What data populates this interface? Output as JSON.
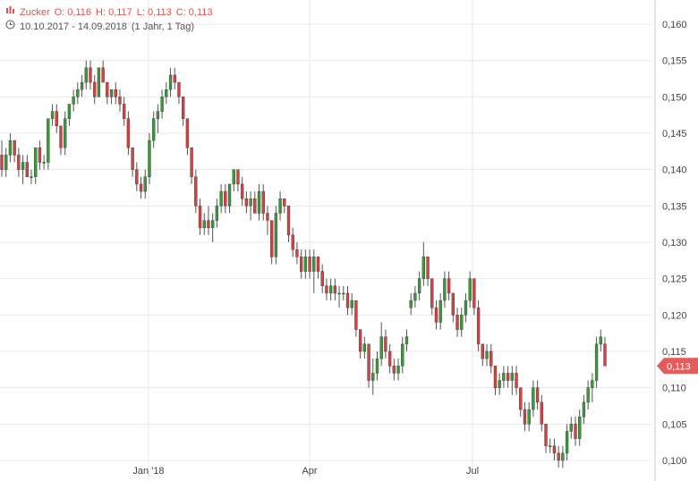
{
  "legend": {
    "name": "Zucker",
    "open": "O: 0,116",
    "high": "H: 0,117",
    "low": "L: 0,113",
    "close": "C: 0,113",
    "date_range": "10.10.2017 - 14.09.2018",
    "period": "(1 Jahr, 1 Tag)",
    "icon_name": "chart-bars-icon",
    "clock_icon": "clock-icon"
  },
  "colors": {
    "up": "#3a9a3a",
    "down": "#d94040",
    "grid": "#e8e8e8",
    "current_tag": "#e85a5a"
  },
  "current_price_label": "0,113",
  "chart_data": {
    "type": "candlestick",
    "ylim": [
      0.098,
      0.163
    ],
    "yticks": [
      "0,100",
      "0,105",
      "0,110",
      "0,115",
      "0,120",
      "0,125",
      "0,130",
      "0,135",
      "0,140",
      "0,145",
      "0,150",
      "0,155",
      "0,160"
    ],
    "xticks": [
      {
        "label": "Jan '18",
        "date": "2018-01-01"
      },
      {
        "label": "Apr",
        "date": "2018-04-01"
      },
      {
        "label": "Jul",
        "date": "2018-07-01"
      }
    ],
    "current_price": 0.113,
    "ohlc": [
      [
        0.142,
        0.144,
        0.139,
        0.14
      ],
      [
        0.14,
        0.143,
        0.139,
        0.142
      ],
      [
        0.142,
        0.145,
        0.141,
        0.144
      ],
      [
        0.144,
        0.144,
        0.141,
        0.142
      ],
      [
        0.142,
        0.143,
        0.139,
        0.14
      ],
      [
        0.14,
        0.142,
        0.138,
        0.141
      ],
      [
        0.141,
        0.142,
        0.139,
        0.139
      ],
      [
        0.139,
        0.14,
        0.138,
        0.139
      ],
      [
        0.139,
        0.143,
        0.138,
        0.143
      ],
      [
        0.143,
        0.144,
        0.14,
        0.141
      ],
      [
        0.141,
        0.142,
        0.14,
        0.141
      ],
      [
        0.141,
        0.147,
        0.14,
        0.147
      ],
      [
        0.147,
        0.149,
        0.146,
        0.148
      ],
      [
        0.148,
        0.149,
        0.145,
        0.146
      ],
      [
        0.146,
        0.146,
        0.142,
        0.143
      ],
      [
        0.143,
        0.148,
        0.142,
        0.147
      ],
      [
        0.147,
        0.149,
        0.146,
        0.149
      ],
      [
        0.149,
        0.151,
        0.148,
        0.15
      ],
      [
        0.15,
        0.152,
        0.149,
        0.151
      ],
      [
        0.151,
        0.153,
        0.15,
        0.152
      ],
      [
        0.152,
        0.155,
        0.151,
        0.154
      ],
      [
        0.154,
        0.155,
        0.151,
        0.152
      ],
      [
        0.152,
        0.153,
        0.149,
        0.15
      ],
      [
        0.15,
        0.154,
        0.15,
        0.154
      ],
      [
        0.154,
        0.155,
        0.152,
        0.152
      ],
      [
        0.152,
        0.152,
        0.149,
        0.15
      ],
      [
        0.15,
        0.151,
        0.149,
        0.151
      ],
      [
        0.151,
        0.152,
        0.149,
        0.15
      ],
      [
        0.15,
        0.151,
        0.148,
        0.149
      ],
      [
        0.149,
        0.15,
        0.146,
        0.147
      ],
      [
        0.147,
        0.148,
        0.142,
        0.143
      ],
      [
        0.143,
        0.143,
        0.139,
        0.14
      ],
      [
        0.14,
        0.141,
        0.137,
        0.138
      ],
      [
        0.138,
        0.139,
        0.136,
        0.137
      ],
      [
        0.137,
        0.14,
        0.136,
        0.139
      ],
      [
        0.139,
        0.145,
        0.138,
        0.144
      ],
      [
        0.144,
        0.148,
        0.143,
        0.147
      ],
      [
        0.147,
        0.149,
        0.145,
        0.148
      ],
      [
        0.148,
        0.151,
        0.147,
        0.15
      ],
      [
        0.15,
        0.152,
        0.149,
        0.151
      ],
      [
        0.151,
        0.154,
        0.15,
        0.153
      ],
      [
        0.153,
        0.154,
        0.151,
        0.152
      ],
      [
        0.152,
        0.152,
        0.149,
        0.15
      ],
      [
        0.15,
        0.15,
        0.146,
        0.147
      ],
      [
        0.147,
        0.147,
        0.142,
        0.143
      ],
      [
        0.143,
        0.143,
        0.138,
        0.139
      ],
      [
        0.139,
        0.14,
        0.134,
        0.135
      ],
      [
        0.135,
        0.136,
        0.131,
        0.132
      ],
      [
        0.132,
        0.134,
        0.131,
        0.133
      ],
      [
        0.133,
        0.135,
        0.131,
        0.132
      ],
      [
        0.132,
        0.134,
        0.13,
        0.133
      ],
      [
        0.133,
        0.136,
        0.132,
        0.135
      ],
      [
        0.135,
        0.138,
        0.134,
        0.137
      ],
      [
        0.137,
        0.138,
        0.134,
        0.135
      ],
      [
        0.135,
        0.138,
        0.134,
        0.138
      ],
      [
        0.138,
        0.14,
        0.137,
        0.14
      ],
      [
        0.14,
        0.14,
        0.137,
        0.138
      ],
      [
        0.138,
        0.139,
        0.135,
        0.136
      ],
      [
        0.136,
        0.137,
        0.134,
        0.135
      ],
      [
        0.135,
        0.137,
        0.133,
        0.136
      ],
      [
        0.136,
        0.137,
        0.134,
        0.134
      ],
      [
        0.134,
        0.138,
        0.133,
        0.137
      ],
      [
        0.137,
        0.138,
        0.133,
        0.134
      ],
      [
        0.134,
        0.135,
        0.131,
        0.133
      ],
      [
        0.133,
        0.133,
        0.127,
        0.128
      ],
      [
        0.128,
        0.135,
        0.127,
        0.134
      ],
      [
        0.134,
        0.137,
        0.133,
        0.136
      ],
      [
        0.136,
        0.136,
        0.134,
        0.135
      ],
      [
        0.135,
        0.135,
        0.13,
        0.131
      ],
      [
        0.131,
        0.132,
        0.128,
        0.129
      ],
      [
        0.129,
        0.13,
        0.127,
        0.128
      ],
      [
        0.128,
        0.129,
        0.125,
        0.126
      ],
      [
        0.126,
        0.129,
        0.125,
        0.128
      ],
      [
        0.128,
        0.129,
        0.125,
        0.126
      ],
      [
        0.126,
        0.129,
        0.123,
        0.128
      ],
      [
        0.128,
        0.128,
        0.125,
        0.126
      ],
      [
        0.126,
        0.127,
        0.123,
        0.124
      ],
      [
        0.124,
        0.125,
        0.122,
        0.123
      ],
      [
        0.123,
        0.125,
        0.122,
        0.124
      ],
      [
        0.124,
        0.125,
        0.122,
        0.123
      ],
      [
        0.123,
        0.124,
        0.121,
        0.123
      ],
      [
        0.123,
        0.124,
        0.122,
        0.123
      ],
      [
        0.123,
        0.124,
        0.12,
        0.121
      ],
      [
        0.121,
        0.123,
        0.12,
        0.122
      ],
      [
        0.122,
        0.122,
        0.117,
        0.118
      ],
      [
        0.118,
        0.118,
        0.114,
        0.115
      ],
      [
        0.115,
        0.117,
        0.114,
        0.116
      ],
      [
        0.116,
        0.116,
        0.11,
        0.111
      ],
      [
        0.111,
        0.114,
        0.109,
        0.112
      ],
      [
        0.112,
        0.115,
        0.111,
        0.114
      ],
      [
        0.114,
        0.119,
        0.113,
        0.117
      ],
      [
        0.117,
        0.118,
        0.114,
        0.115
      ],
      [
        0.115,
        0.116,
        0.112,
        0.113
      ],
      [
        0.113,
        0.114,
        0.111,
        0.112
      ],
      [
        0.112,
        0.114,
        0.111,
        0.113
      ],
      [
        0.113,
        0.117,
        0.112,
        0.116
      ],
      [
        0.116,
        0.118,
        0.115,
        0.117
      ],
      [
        0.121,
        0.123,
        0.12,
        0.122
      ],
      [
        0.122,
        0.124,
        0.121,
        0.123
      ],
      [
        0.123,
        0.126,
        0.122,
        0.125
      ],
      [
        0.125,
        0.13,
        0.124,
        0.128
      ],
      [
        0.128,
        0.128,
        0.124,
        0.125
      ],
      [
        0.125,
        0.125,
        0.12,
        0.121
      ],
      [
        0.121,
        0.122,
        0.118,
        0.119
      ],
      [
        0.119,
        0.123,
        0.118,
        0.122
      ],
      [
        0.122,
        0.126,
        0.121,
        0.125
      ],
      [
        0.125,
        0.126,
        0.122,
        0.123
      ],
      [
        0.123,
        0.123,
        0.119,
        0.12
      ],
      [
        0.12,
        0.121,
        0.117,
        0.118
      ],
      [
        0.118,
        0.121,
        0.117,
        0.12
      ],
      [
        0.12,
        0.123,
        0.119,
        0.122
      ],
      [
        0.122,
        0.126,
        0.121,
        0.125
      ],
      [
        0.125,
        0.125,
        0.12,
        0.121
      ],
      [
        0.121,
        0.122,
        0.115,
        0.116
      ],
      [
        0.116,
        0.116,
        0.113,
        0.114
      ],
      [
        0.114,
        0.116,
        0.113,
        0.115
      ],
      [
        0.115,
        0.116,
        0.112,
        0.113
      ],
      [
        0.113,
        0.113,
        0.109,
        0.11
      ],
      [
        0.11,
        0.112,
        0.109,
        0.111
      ],
      [
        0.111,
        0.113,
        0.11,
        0.112
      ],
      [
        0.112,
        0.113,
        0.11,
        0.111
      ],
      [
        0.111,
        0.113,
        0.109,
        0.112
      ],
      [
        0.112,
        0.113,
        0.109,
        0.11
      ],
      [
        0.11,
        0.11,
        0.106,
        0.107
      ],
      [
        0.107,
        0.108,
        0.104,
        0.105
      ],
      [
        0.105,
        0.108,
        0.104,
        0.107
      ],
      [
        0.107,
        0.111,
        0.106,
        0.11
      ],
      [
        0.11,
        0.111,
        0.107,
        0.108
      ],
      [
        0.108,
        0.109,
        0.104,
        0.105
      ],
      [
        0.105,
        0.105,
        0.101,
        0.102
      ],
      [
        0.102,
        0.103,
        0.101,
        0.102
      ],
      [
        0.102,
        0.103,
        0.1,
        0.101
      ],
      [
        0.101,
        0.102,
        0.099,
        0.1
      ],
      [
        0.1,
        0.102,
        0.099,
        0.101
      ],
      [
        0.101,
        0.105,
        0.1,
        0.104
      ],
      [
        0.104,
        0.106,
        0.103,
        0.105
      ],
      [
        0.105,
        0.106,
        0.102,
        0.103
      ],
      [
        0.103,
        0.107,
        0.102,
        0.106
      ],
      [
        0.106,
        0.109,
        0.105,
        0.108
      ],
      [
        0.108,
        0.111,
        0.107,
        0.11
      ],
      [
        0.11,
        0.112,
        0.108,
        0.111
      ],
      [
        0.111,
        0.117,
        0.11,
        0.116
      ],
      [
        0.116,
        0.118,
        0.115,
        0.117
      ],
      [
        0.116,
        0.117,
        0.113,
        0.113
      ]
    ]
  }
}
